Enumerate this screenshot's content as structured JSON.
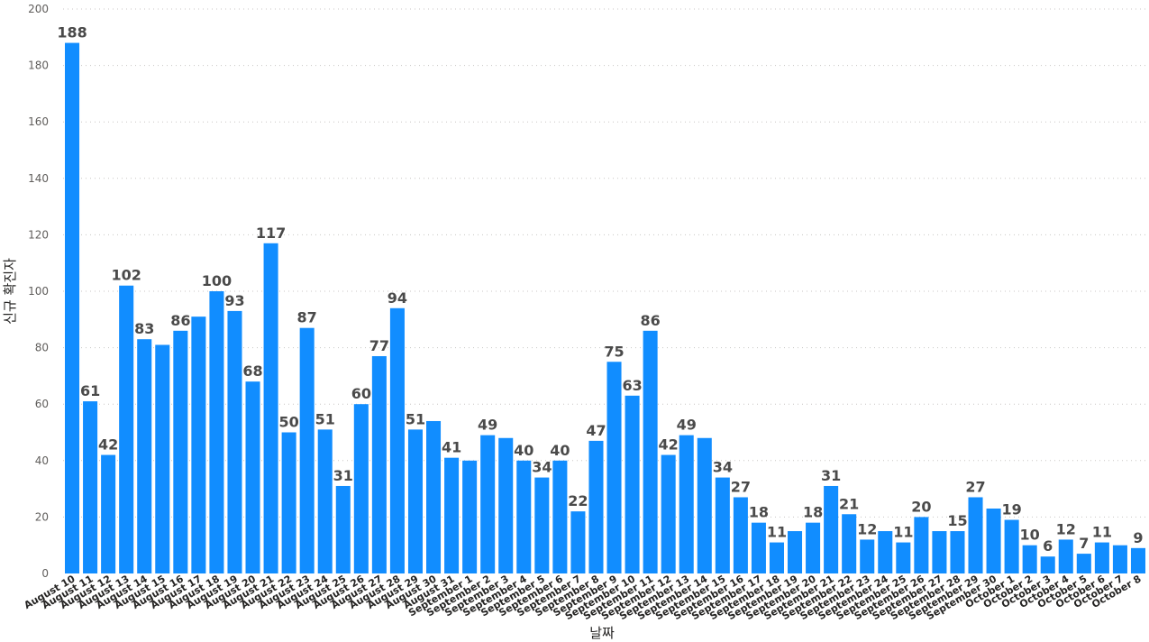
{
  "chart_data": {
    "type": "bar",
    "title": "",
    "xlabel": "날짜",
    "ylabel": "신규 확진자",
    "ylim": [
      0,
      200
    ],
    "yticks": [
      0,
      20,
      40,
      60,
      80,
      100,
      120,
      140,
      160,
      180,
      200
    ],
    "grid": true,
    "bar_color": "#118DFF",
    "categories": [
      "August 10",
      "August 11",
      "August 12",
      "August 13",
      "August 14",
      "August 15",
      "August 16",
      "August 17",
      "August 18",
      "August 19",
      "August 20",
      "August 21",
      "August 22",
      "August 23",
      "August 24",
      "August 25",
      "August 26",
      "August 27",
      "August 28",
      "August 29",
      "August 30",
      "August 31",
      "September 1",
      "September 2",
      "September 3",
      "September 4",
      "September 5",
      "September 6",
      "September 7",
      "September 8",
      "September 9",
      "September 10",
      "September 11",
      "September 12",
      "September 13",
      "September 14",
      "September 15",
      "September 16",
      "September 17",
      "September 18",
      "September 19",
      "September 20",
      "September 21",
      "September 22",
      "September 23",
      "September 24",
      "September 25",
      "September 26",
      "September 27",
      "September 28",
      "September 29",
      "September 30",
      "October 1",
      "October 2",
      "October 3",
      "October 4",
      "October 5",
      "October 6",
      "October 7",
      "October 8"
    ],
    "values": [
      188,
      61,
      42,
      102,
      83,
      81,
      86,
      91,
      100,
      93,
      68,
      117,
      50,
      87,
      51,
      31,
      60,
      77,
      94,
      51,
      54,
      41,
      40,
      49,
      48,
      40,
      34,
      40,
      22,
      47,
      75,
      63,
      86,
      42,
      49,
      48,
      34,
      27,
      18,
      11,
      15,
      18,
      31,
      21,
      12,
      15,
      11,
      20,
      15,
      15,
      27,
      23,
      19,
      10,
      6,
      12,
      7,
      11,
      10,
      9
    ],
    "data_labels": [
      "188",
      "61",
      "42",
      "102",
      "83",
      "",
      "86",
      "",
      "100",
      "93",
      "68",
      "117",
      "50",
      "87",
      "51",
      "31",
      "60",
      "77",
      "94",
      "51",
      "",
      "41",
      "",
      "49",
      "",
      "40",
      "34",
      "40",
      "22",
      "47",
      "75",
      "63",
      "86",
      "42",
      "49",
      "",
      "34",
      "27",
      "18",
      "11",
      "",
      "18",
      "31",
      "21",
      "12",
      "",
      "11",
      "20",
      "",
      "15",
      "27",
      "",
      "19",
      "10",
      "6",
      "12",
      "7",
      "11",
      "",
      "9"
    ]
  }
}
